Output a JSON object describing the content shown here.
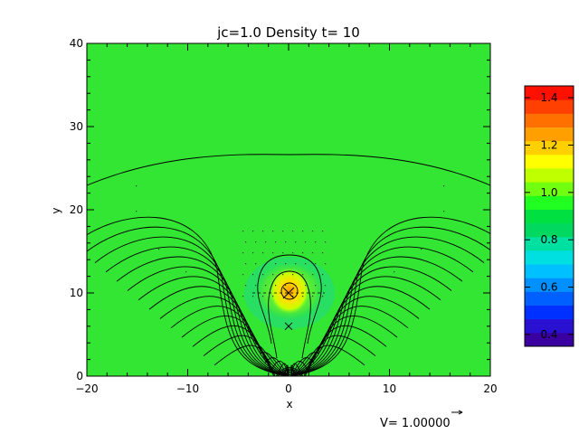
{
  "chart_data": {
    "type": "heatmap",
    "title": "jc=1.0 Density t= 10",
    "xlabel": "x",
    "ylabel": "y",
    "xlim": [
      -20,
      20
    ],
    "ylim": [
      0,
      40
    ],
    "x_ticks": [
      "−20",
      "−10",
      "0",
      "10",
      "20"
    ],
    "y_ticks": [
      "0",
      "10",
      "20",
      "30",
      "40"
    ],
    "x_tick_values": [
      -20,
      -10,
      0,
      10,
      20
    ],
    "y_tick_values": [
      0,
      10,
      20,
      30,
      40
    ],
    "background_value": 1.0,
    "features": [
      {
        "name": "dense-core",
        "x": 0,
        "y": 10,
        "peak_value": 1.3
      },
      {
        "name": "rarefied-halo",
        "x": 0,
        "y": 10,
        "value": 0.85
      },
      {
        "name": "marker-x",
        "x": 0,
        "y": 6
      }
    ],
    "colorbar": {
      "min": 0.35,
      "max": 1.45,
      "ticks": [
        "0.4",
        "0.6",
        "0.8",
        "1.0",
        "1.2",
        "1.4"
      ],
      "tick_values": [
        0.4,
        0.6,
        0.8,
        1.0,
        1.2,
        1.4
      ],
      "colors": [
        "#3a00a0",
        "#2a10d0",
        "#0030ff",
        "#0060ff",
        "#0090ff",
        "#00c0ff",
        "#00e0e0",
        "#00e0a0",
        "#00d860",
        "#00e040",
        "#20ff20",
        "#70ff10",
        "#c0ff00",
        "#ffff00",
        "#ffd000",
        "#ffa000",
        "#ff7000",
        "#ff4000",
        "#ff1000"
      ]
    },
    "vector_reference_label": "V= 1.00000",
    "colors": {
      "background_field": "#33e633",
      "contour": "#000000"
    }
  }
}
